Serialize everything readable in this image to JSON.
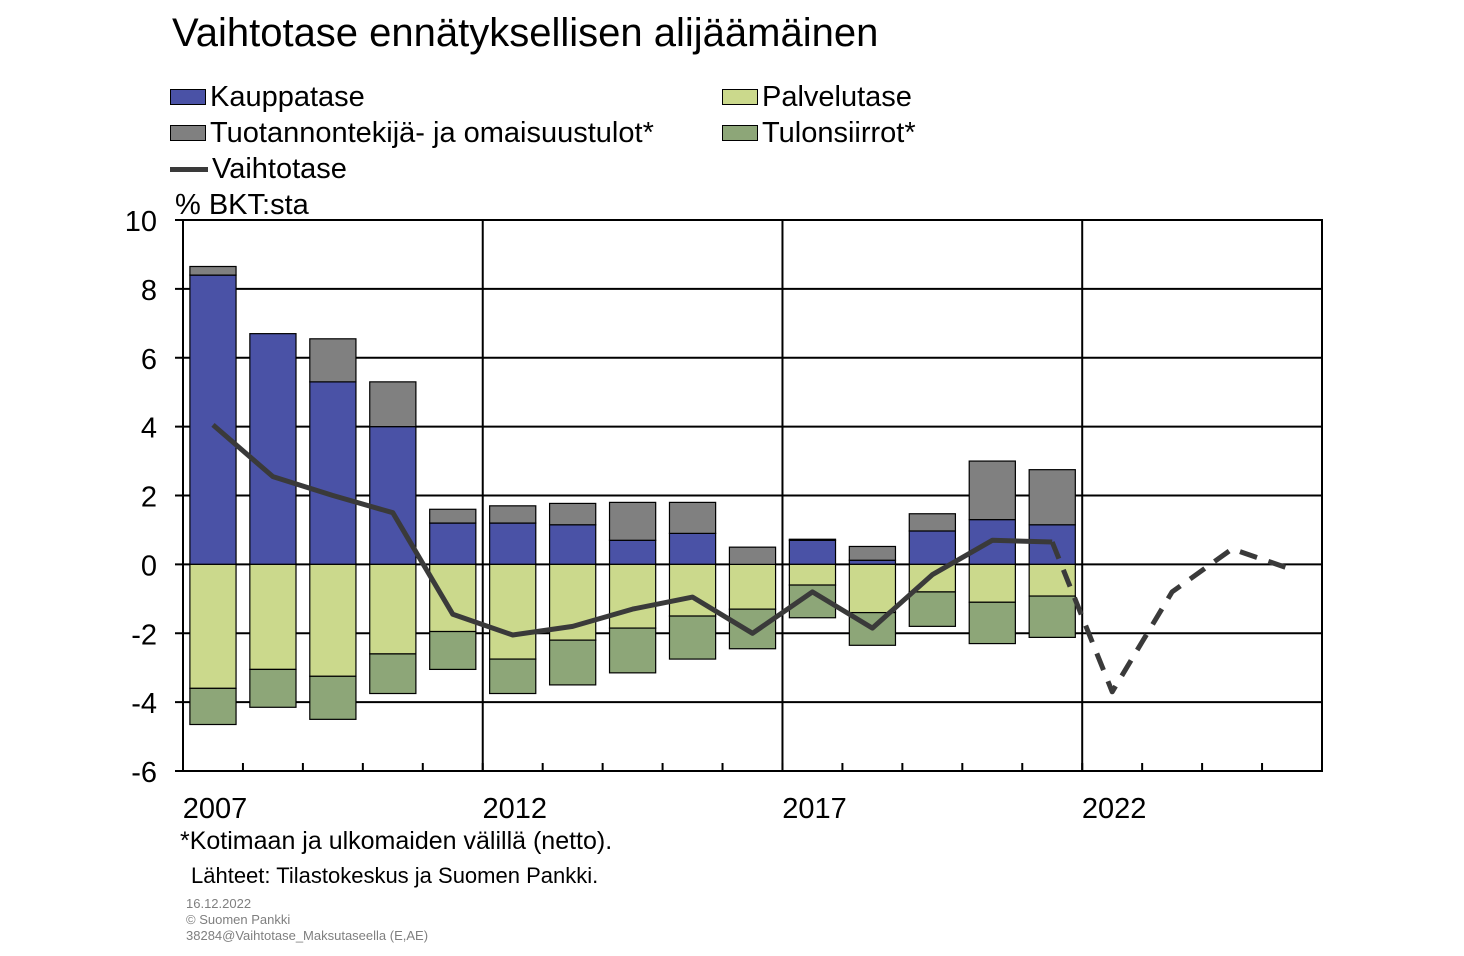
{
  "title": "Vaihtotase ennätyksellisen alijäämäinen",
  "unit_label": "% BKT:sta",
  "footnote": "*Kotimaan ja ulkomaiden välillä (netto).",
  "sources": "Lähteet: Tilastokeskus ja Suomen Pankki.",
  "date": "16.12.2022",
  "copyright": "© Suomen Pankki",
  "file_ref": "38284@Vaihtotase_Maksutaseella (E,AE)",
  "colors": {
    "trade": "#4a52a6",
    "services": "#cbd98c",
    "income": "#808080",
    "transfers": "#8da678",
    "current_account": "#3a3a3a"
  },
  "chart_data": {
    "type": "bar",
    "stacked": true,
    "title": "Vaihtotase ennätyksellisen alijäämäinen",
    "ylabel": "% BKT:sta",
    "ylim": [
      -6,
      10
    ],
    "yticks": [
      "-6",
      "-4",
      "-2",
      "0",
      "2",
      "4",
      "6",
      "8",
      "10"
    ],
    "x_tick_labels": [
      "2007",
      "2012",
      "2017",
      "2022"
    ],
    "categories": [
      2007,
      2008,
      2009,
      2010,
      2011,
      2012,
      2013,
      2014,
      2015,
      2016,
      2017,
      2018,
      2019,
      2020,
      2021
    ],
    "grid": true,
    "legend_position": "top",
    "series": [
      {
        "name": "Kauppatase",
        "color_key": "trade",
        "values": [
          8.4,
          6.7,
          5.3,
          4.0,
          1.2,
          1.2,
          1.15,
          0.7,
          0.9,
          0.0,
          0.7,
          0.12,
          0.97,
          1.3,
          1.15
        ]
      },
      {
        "name": "Palvelutase",
        "color_key": "services",
        "values": [
          -3.6,
          -3.05,
          -3.25,
          -2.6,
          -1.95,
          -2.75,
          -2.2,
          -1.85,
          -1.5,
          -1.3,
          -0.6,
          -1.4,
          -0.8,
          -1.1,
          -0.92
        ]
      },
      {
        "name": "Tuotannontekijä- ja omaisuustulot*",
        "color_key": "income",
        "values": [
          0.25,
          0.0,
          1.25,
          1.3,
          0.4,
          0.5,
          0.62,
          1.1,
          0.9,
          0.5,
          0.03,
          0.4,
          0.5,
          1.7,
          1.6
        ]
      },
      {
        "name": "Tulonsiirrot*",
        "color_key": "transfers",
        "values": [
          -1.05,
          -1.1,
          -1.25,
          -1.15,
          -1.1,
          -1.0,
          -1.3,
          -1.3,
          -1.25,
          -1.15,
          -0.95,
          -0.95,
          -1.0,
          -1.2,
          -1.2
        ]
      }
    ],
    "line_series": {
      "name": "Vaihtotase",
      "color_key": "current_account",
      "x": [
        2007,
        2008,
        2009,
        2010,
        2011,
        2012,
        2013,
        2014,
        2015,
        2016,
        2017,
        2018,
        2019,
        2020,
        2021,
        2022,
        2023,
        2024,
        2025
      ],
      "values": [
        4.05,
        2.55,
        2.0,
        1.5,
        -1.45,
        -2.05,
        -1.8,
        -1.3,
        -0.95,
        -2.0,
        -0.8,
        -1.85,
        -0.3,
        0.7,
        0.65,
        -3.7,
        -0.8,
        0.45,
        -0.15
      ],
      "forecast_from": 2021
    }
  }
}
